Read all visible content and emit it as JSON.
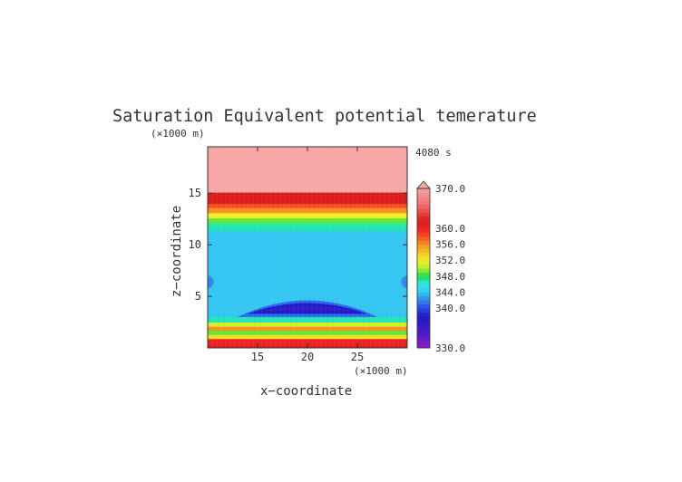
{
  "chart_data": {
    "type": "heatmap",
    "title": "Saturation Equivalent potential temerature",
    "time_label": "4080 s",
    "xlabel": "x−coordinate",
    "ylabel": "z−coordinate",
    "x_unit": "(×1000 m)",
    "y_unit": "(×1000 m)",
    "xlim": [
      10,
      30
    ],
    "ylim": [
      0,
      19.5
    ],
    "x_ticks": [
      15,
      20,
      25
    ],
    "y_ticks": [
      5,
      10,
      15
    ],
    "colorbar": {
      "min": 330.0,
      "max": 370.0,
      "tick_labels": [
        "370.0",
        "360.0",
        "356.0",
        "352.0",
        "348.0",
        "344.0",
        "340.0",
        "330.0"
      ],
      "tick_values": [
        370,
        360,
        356,
        352,
        348,
        344,
        340,
        330
      ],
      "extend": "max"
    },
    "vertical_profile": [
      {
        "z_top": 0.3,
        "value": 361
      },
      {
        "z_top": 0.9,
        "value": 360
      },
      {
        "z_top": 1.3,
        "value": 353
      },
      {
        "z_top": 1.7,
        "value": 349
      },
      {
        "z_top": 2.1,
        "value": 356
      },
      {
        "z_top": 2.5,
        "value": 351
      },
      {
        "z_top": 3.0,
        "value": 347
      },
      {
        "z_top": 11.4,
        "value": 344
      },
      {
        "z_top": 12.1,
        "value": 347
      },
      {
        "z_top": 12.6,
        "value": 349
      },
      {
        "z_top": 13.1,
        "value": 352
      },
      {
        "z_top": 13.6,
        "value": 356
      },
      {
        "z_top": 14.0,
        "value": 358
      },
      {
        "z_top": 15.1,
        "value": 362
      },
      {
        "z_top": 19.5,
        "value": 372
      }
    ],
    "features": [
      {
        "kind": "dome",
        "x_center": 20,
        "half_width": 7,
        "z_base": 3.0,
        "z_top": 4.7,
        "value": 341
      },
      {
        "kind": "dome",
        "x_center": 20,
        "half_width": 6,
        "z_base": 3.3,
        "z_top": 4.4,
        "value": 338
      },
      {
        "kind": "dome",
        "x_center": 20,
        "half_width": 4.5,
        "z_base": 3.6,
        "z_top": 4.1,
        "value": 336
      },
      {
        "kind": "edge-lobe",
        "x_center": 10,
        "z_center": 6.4,
        "half_width": 0.6,
        "half_height": 0.6,
        "value": 342
      },
      {
        "kind": "edge-lobe",
        "x_center": 30,
        "z_center": 6.4,
        "half_width": 0.6,
        "half_height": 0.6,
        "value": 342
      }
    ]
  }
}
